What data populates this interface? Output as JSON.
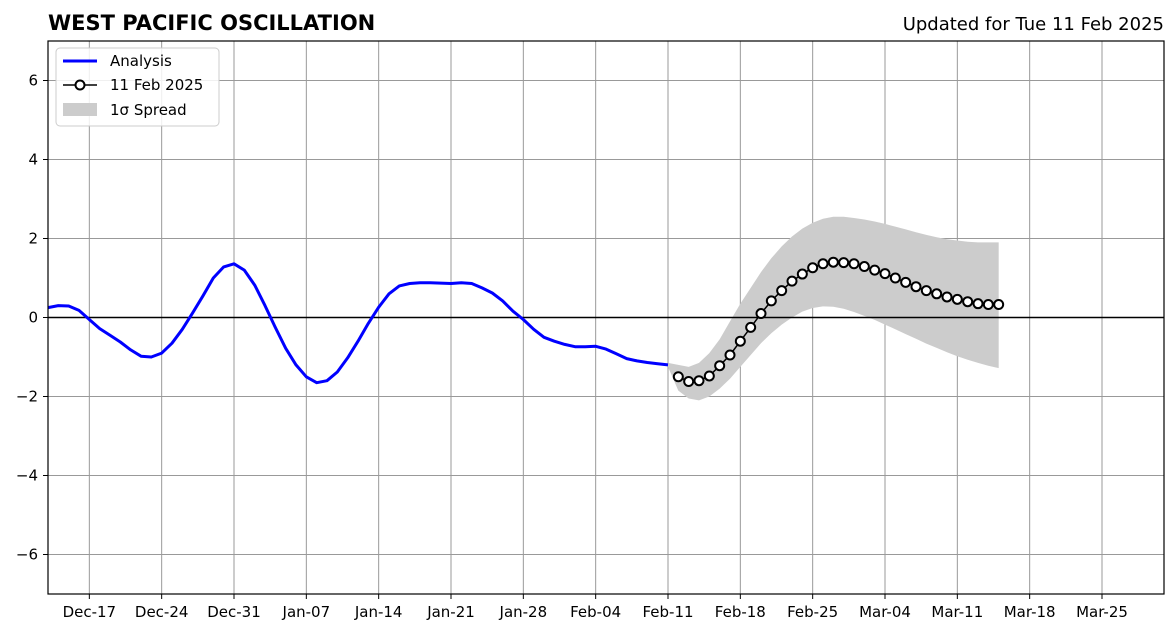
{
  "chart_data": {
    "type": "line",
    "title": "WEST PACIFIC OSCILLATION",
    "subtitle": "Updated for Tue 11 Feb 2025",
    "ylim": [
      -7,
      7
    ],
    "yticks": [
      -6,
      -4,
      -2,
      0,
      2,
      4,
      6
    ],
    "ytick_labels": [
      "−6",
      "−4",
      "−2",
      "0",
      "2",
      "4",
      "6"
    ],
    "xlim": [
      "2024-12-13",
      "2025-03-31"
    ],
    "xticks": [
      "2024-12-17",
      "2024-12-24",
      "2024-12-31",
      "2025-01-07",
      "2025-01-14",
      "2025-01-21",
      "2025-01-28",
      "2025-02-04",
      "2025-02-11",
      "2025-02-18",
      "2025-02-25",
      "2025-03-04",
      "2025-03-11",
      "2025-03-18",
      "2025-03-25"
    ],
    "xtick_labels": [
      "Dec-17",
      "Dec-24",
      "Dec-31",
      "Jan-07",
      "Jan-14",
      "Jan-21",
      "Jan-28",
      "Feb-04",
      "Feb-11",
      "Feb-18",
      "Feb-25",
      "Mar-04",
      "Mar-11",
      "Mar-18",
      "Mar-25"
    ],
    "grid": true,
    "zero_line": true,
    "legend_position": "top-left",
    "legend": [
      "Analysis",
      "11 Feb 2025",
      "1σ Spread"
    ],
    "colors": {
      "analysis": "#0000ff",
      "forecast": "#000000",
      "spread": "#cccccc",
      "grid": "#999999"
    },
    "analysis": {
      "name": "Analysis",
      "x": [
        "2024-12-13",
        "2024-12-14",
        "2024-12-15",
        "2024-12-16",
        "2024-12-17",
        "2024-12-18",
        "2024-12-19",
        "2024-12-20",
        "2024-12-21",
        "2024-12-22",
        "2024-12-23",
        "2024-12-24",
        "2024-12-25",
        "2024-12-26",
        "2024-12-27",
        "2024-12-28",
        "2024-12-29",
        "2024-12-30",
        "2024-12-31",
        "2025-01-01",
        "2025-01-02",
        "2025-01-03",
        "2025-01-04",
        "2025-01-05",
        "2025-01-06",
        "2025-01-07",
        "2025-01-08",
        "2025-01-09",
        "2025-01-10",
        "2025-01-11",
        "2025-01-12",
        "2025-01-13",
        "2025-01-14",
        "2025-01-15",
        "2025-01-16",
        "2025-01-17",
        "2025-01-18",
        "2025-01-19",
        "2025-01-20",
        "2025-01-21",
        "2025-01-22",
        "2025-01-23",
        "2025-01-24",
        "2025-01-25",
        "2025-01-26",
        "2025-01-27",
        "2025-01-28",
        "2025-01-29",
        "2025-01-30",
        "2025-01-31",
        "2025-02-01",
        "2025-02-02",
        "2025-02-03",
        "2025-02-04",
        "2025-02-05",
        "2025-02-06",
        "2025-02-07",
        "2025-02-08",
        "2025-02-09",
        "2025-02-10",
        "2025-02-11"
      ],
      "y": [
        0.25,
        0.3,
        0.29,
        0.18,
        -0.05,
        -0.28,
        -0.45,
        -0.62,
        -0.82,
        -0.98,
        -1.0,
        -0.9,
        -0.65,
        -0.3,
        0.12,
        0.55,
        1.0,
        1.28,
        1.36,
        1.2,
        0.82,
        0.3,
        -0.25,
        -0.78,
        -1.2,
        -1.5,
        -1.65,
        -1.6,
        -1.38,
        -1.02,
        -0.6,
        -0.15,
        0.26,
        0.6,
        0.8,
        0.86,
        0.88,
        0.88,
        0.87,
        0.86,
        0.88,
        0.86,
        0.75,
        0.62,
        0.42,
        0.16,
        -0.05,
        -0.3,
        -0.5,
        -0.6,
        -0.68,
        -0.74,
        -0.74,
        -0.73,
        -0.8,
        -0.92,
        -1.04,
        -1.1,
        -1.14,
        -1.17,
        -1.2
      ]
    },
    "forecast": {
      "name": "11 Feb 2025",
      "x": [
        "2025-02-12",
        "2025-02-13",
        "2025-02-14",
        "2025-02-15",
        "2025-02-16",
        "2025-02-17",
        "2025-02-18",
        "2025-02-19",
        "2025-02-20",
        "2025-02-21",
        "2025-02-22",
        "2025-02-23",
        "2025-02-24",
        "2025-02-25",
        "2025-02-26",
        "2025-02-27",
        "2025-02-28",
        "2025-03-01",
        "2025-03-02",
        "2025-03-03",
        "2025-03-04",
        "2025-03-05",
        "2025-03-06",
        "2025-03-07",
        "2025-03-08",
        "2025-03-09",
        "2025-03-10",
        "2025-03-11",
        "2025-03-12",
        "2025-03-13",
        "2025-03-14",
        "2025-03-15"
      ],
      "y": [
        -1.5,
        -1.62,
        -1.6,
        -1.48,
        -1.22,
        -0.95,
        -0.6,
        -0.25,
        0.1,
        0.42,
        0.68,
        0.92,
        1.1,
        1.26,
        1.36,
        1.4,
        1.39,
        1.36,
        1.29,
        1.2,
        1.11,
        1.0,
        0.89,
        0.78,
        0.68,
        0.6,
        0.52,
        0.46,
        0.4,
        0.35,
        0.33,
        0.33
      ]
    },
    "spread": {
      "name": "1σ Spread",
      "x": [
        "2025-02-11",
        "2025-02-12",
        "2025-02-13",
        "2025-02-14",
        "2025-02-15",
        "2025-02-16",
        "2025-02-17",
        "2025-02-18",
        "2025-02-19",
        "2025-02-20",
        "2025-02-21",
        "2025-02-22",
        "2025-02-23",
        "2025-02-24",
        "2025-02-25",
        "2025-02-26",
        "2025-02-27",
        "2025-02-28",
        "2025-03-01",
        "2025-03-02",
        "2025-03-03",
        "2025-03-04",
        "2025-03-05",
        "2025-03-06",
        "2025-03-07",
        "2025-03-08",
        "2025-03-09",
        "2025-03-10",
        "2025-03-11",
        "2025-03-12",
        "2025-03-13",
        "2025-03-14",
        "2025-03-15"
      ],
      "upper": [
        -1.15,
        -1.2,
        -1.25,
        -1.15,
        -0.9,
        -0.55,
        -0.1,
        0.35,
        0.75,
        1.15,
        1.5,
        1.8,
        2.05,
        2.25,
        2.4,
        2.5,
        2.55,
        2.55,
        2.52,
        2.48,
        2.43,
        2.37,
        2.3,
        2.23,
        2.16,
        2.09,
        2.03,
        1.98,
        1.95,
        1.92,
        1.9,
        1.9,
        1.9
      ],
      "lower": [
        -1.25,
        -1.85,
        -2.05,
        -2.1,
        -2.0,
        -1.8,
        -1.55,
        -1.25,
        -0.95,
        -0.65,
        -0.4,
        -0.18,
        0.0,
        0.15,
        0.24,
        0.28,
        0.27,
        0.22,
        0.14,
        0.04,
        -0.06,
        -0.18,
        -0.3,
        -0.42,
        -0.54,
        -0.66,
        -0.77,
        -0.88,
        -0.98,
        -1.07,
        -1.15,
        -1.22,
        -1.28
      ]
    }
  }
}
